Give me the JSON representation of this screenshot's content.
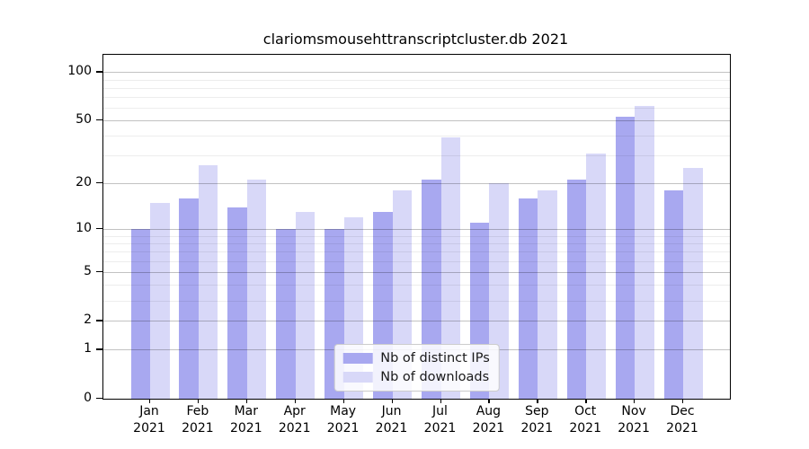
{
  "chart_data": {
    "type": "bar",
    "title": "clariomsmousehttranscriptcluster.db 2021",
    "categories": [
      "Jan",
      "Feb",
      "Mar",
      "Apr",
      "May",
      "Jun",
      "Jul",
      "Aug",
      "Sep",
      "Oct",
      "Nov",
      "Dec"
    ],
    "category_year": "2021",
    "series": [
      {
        "name": "Nb of distinct IPs",
        "color": "#a8a8f0",
        "values": [
          10,
          16,
          14,
          10,
          10,
          13,
          21,
          11,
          16,
          21,
          53,
          18
        ]
      },
      {
        "name": "Nb of downloads",
        "color": "#d8d8f8",
        "values": [
          15,
          26,
          21,
          13,
          12,
          18,
          39,
          20,
          18,
          31,
          62,
          25
        ]
      }
    ],
    "xlabel": "",
    "ylabel": "",
    "yscale": "log1p",
    "ylim": [
      0,
      128
    ],
    "yticks": [
      0,
      1,
      2,
      5,
      10,
      20,
      50,
      100
    ],
    "minor_gridlines": [
      3,
      4,
      6,
      7,
      8,
      9,
      30,
      40,
      60,
      70,
      80,
      90
    ],
    "grid": true,
    "legend_position": "lower-center"
  },
  "colors": {
    "axis": "#000000",
    "major_grid": "rgba(0,0,0,0.24)",
    "minor_grid": "rgba(0,0,0,0.07)",
    "text": "#000000"
  }
}
